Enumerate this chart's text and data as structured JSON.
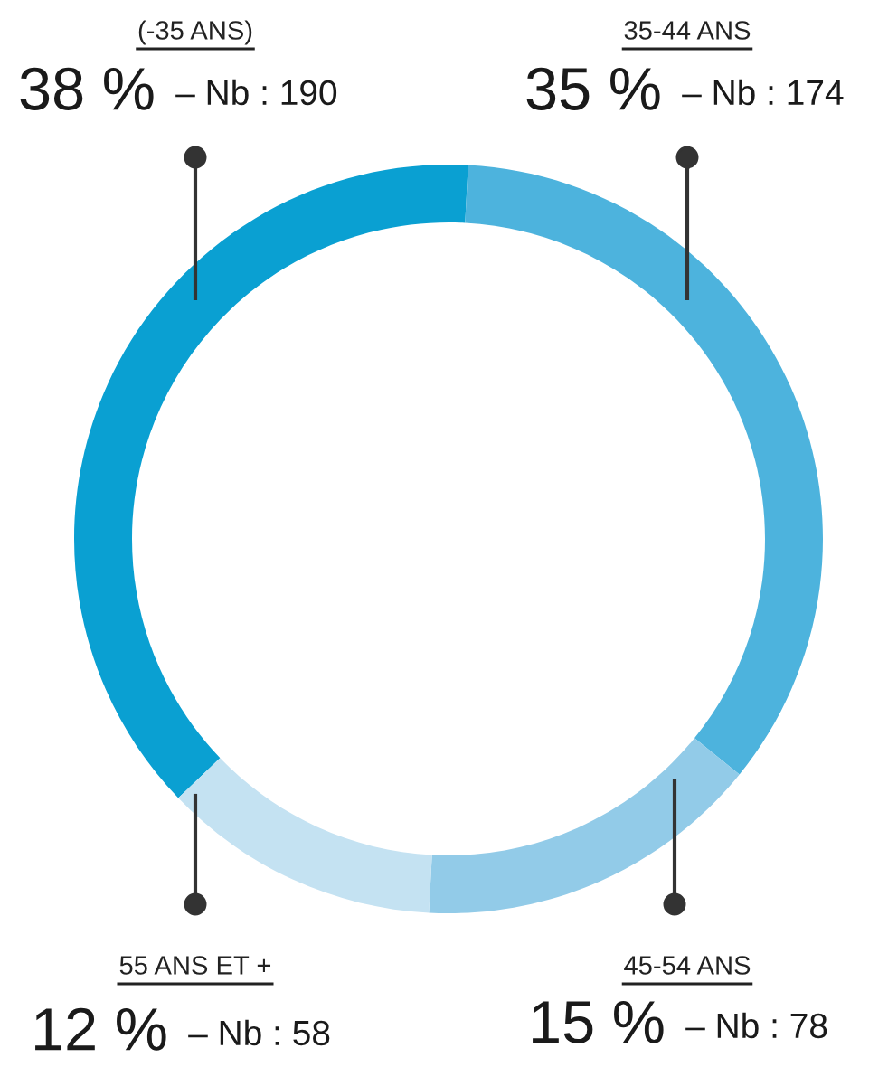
{
  "chart_data": {
    "type": "donut",
    "categories": [
      "(-35 ANS)",
      "35-44 ANS",
      "45-54 ANS",
      "55 ANS ET +"
    ],
    "values": [
      38,
      35,
      15,
      12
    ],
    "colors": [
      "#0aa0d2",
      "#4db3dd",
      "#92cbe8",
      "#c4e2f2"
    ],
    "value_labels": [
      "38 %",
      "35 %",
      "15 %",
      "12 %"
    ],
    "annotations": [
      "– Nb : 190",
      "– Nb : 174",
      "– Nb : 78",
      "– Nb : 58"
    ]
  }
}
